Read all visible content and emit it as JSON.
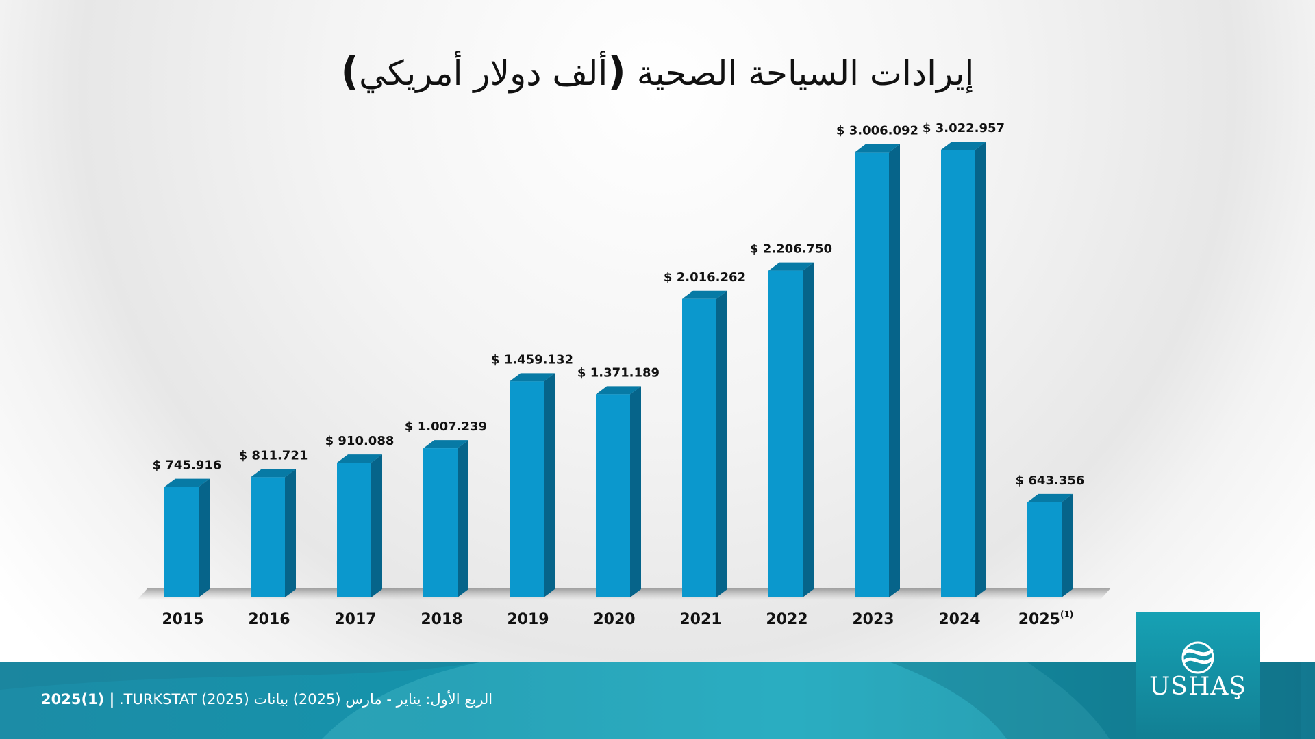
{
  "title": {
    "main": "إيرادات السياحة الصحية",
    "unit": "ألف دولار أمريكي"
  },
  "chart_data": {
    "type": "bar",
    "title": "إيرادات السياحة الصحية (ألف دولار أمريكي)",
    "categories": [
      "2015",
      "2016",
      "2017",
      "2018",
      "2019",
      "2020",
      "2021",
      "2022",
      "2023",
      "2024",
      "2025"
    ],
    "category_suffixes": [
      "",
      "",
      "",
      "",
      "",
      "",
      "",
      "",
      "",
      "",
      "(1)"
    ],
    "values": [
      745916,
      811721,
      910088,
      1007239,
      1459132,
      1371189,
      2016262,
      2206750,
      3006092,
      3022957,
      643356
    ],
    "data_labels": [
      "$ 745.916",
      "$ 811.721",
      "$ 910.088",
      "$ 1.007.239",
      "$ 1.459.132",
      "$ 1.371.189",
      "$ 2.016.262",
      "$ 2.206.750",
      "$ 3.006.092",
      "$ 3.022.957",
      "$ 643.356"
    ],
    "xlabel": "",
    "ylabel": "",
    "ylim": [
      0,
      3022957
    ],
    "grid": false,
    "legend": "none",
    "colors": {
      "bar_front": "#0b98cd",
      "bar_side": "#06648a",
      "bar_top": "#077aa5"
    }
  },
  "footer": {
    "tag": "2025(1) |",
    "note": "الربع الأول: يناير - مارس (2025) بيانات TURKSTAT (2025).",
    "colors": {
      "band": "#1593ab"
    }
  },
  "logo": {
    "text": "USHAŞ",
    "icon": "ushas-wave-logo-icon"
  }
}
